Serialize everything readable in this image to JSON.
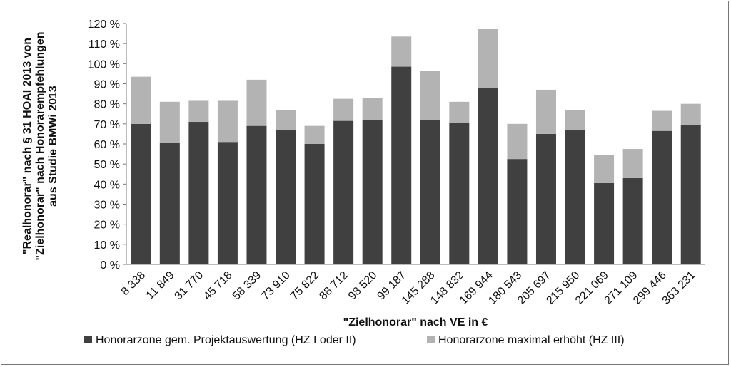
{
  "chart_data": {
    "type": "bar",
    "stacked": true,
    "title": "",
    "xlabel": "\"Zielhonorar\" nach VE in €",
    "ylabel_lines": [
      "\"Realhonorar\" nach § 31 HOAI 2013 von",
      "\"Zielhonorar\" nach Honorarempfehlungen",
      "aus Studie BMWi 2013"
    ],
    "ylim": [
      0,
      120
    ],
    "yticks": [
      0,
      10,
      20,
      30,
      40,
      50,
      60,
      70,
      80,
      90,
      100,
      110,
      120
    ],
    "ytick_labels": [
      "0 %",
      "10 %",
      "20 %",
      "30 %",
      "40 %",
      "50 %",
      "60 %",
      "70 %",
      "80 %",
      "90 %",
      "100 %",
      "110 %",
      "120 %"
    ],
    "grid": false,
    "legend_position": "bottom",
    "categories": [
      "8 338",
      "11 849",
      "31 770",
      "45 718",
      "58 339",
      "73 910",
      "75 822",
      "88 712",
      "98 520",
      "99 187",
      "145 288",
      "148 832",
      "169 944",
      "180 543",
      "205 697",
      "215 950",
      "221 069",
      "271 109",
      "299 446",
      "363 231"
    ],
    "series": [
      {
        "name": "Honorarzone gem. Projektauswertung (HZ I oder II)",
        "color": "#404040",
        "values": [
          70,
          60.5,
          71,
          61,
          69,
          67,
          60,
          71.5,
          72,
          98.5,
          72,
          70.5,
          88,
          52.5,
          65,
          67,
          40.5,
          43,
          66.5,
          69.5
        ]
      },
      {
        "name": "Honorarzone maximal erhöht (HZ III)",
        "color": "#b3b3b3",
        "values": [
          23.5,
          20.5,
          10.5,
          20.5,
          23,
          10,
          9,
          11,
          11,
          15,
          24.5,
          10.5,
          29.5,
          17.5,
          22,
          10,
          14,
          14.5,
          10,
          10.5
        ]
      }
    ]
  }
}
